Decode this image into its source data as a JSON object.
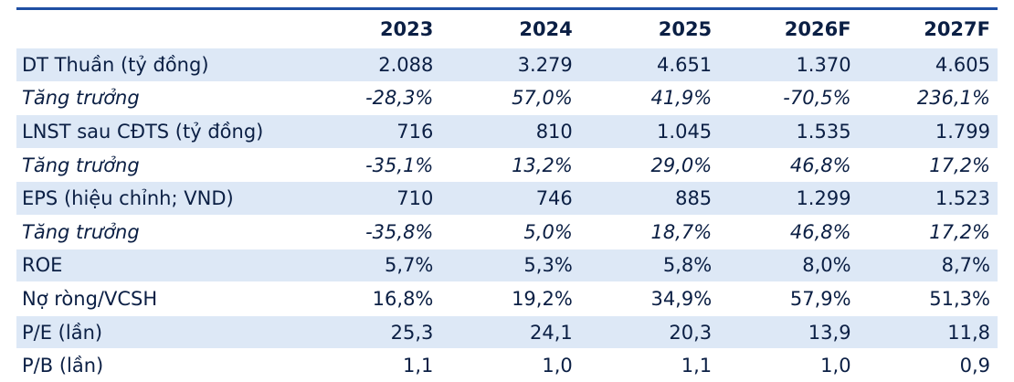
{
  "table": {
    "headers": [
      "",
      "2023",
      "2024",
      "2025",
      "2026F",
      "2027F"
    ],
    "rows": [
      {
        "label": "DT Thuần (tỷ đồng)",
        "values": [
          "2.088",
          "3.279",
          "4.651",
          "1.370",
          "4.605"
        ],
        "style": "shade"
      },
      {
        "label": "Tăng trưởng",
        "values": [
          "-28,3%",
          "57,0%",
          "41,9%",
          "-70,5%",
          "236,1%"
        ],
        "style": "growth"
      },
      {
        "label": "LNST sau CĐTS (tỷ đồng)",
        "values": [
          "716",
          "810",
          "1.045",
          "1.535",
          "1.799"
        ],
        "style": "shade"
      },
      {
        "label": "Tăng trưởng",
        "values": [
          "-35,1%",
          "13,2%",
          "29,0%",
          "46,8%",
          "17,2%"
        ],
        "style": "growth"
      },
      {
        "label": "EPS (hiệu chỉnh; VND)",
        "values": [
          "710",
          "746",
          "885",
          "1.299",
          "1.523"
        ],
        "style": "shade"
      },
      {
        "label": "Tăng trưởng",
        "values": [
          "-35,8%",
          "5,0%",
          "18,7%",
          "46,8%",
          "17,2%"
        ],
        "style": "growth"
      },
      {
        "label": "ROE",
        "values": [
          "5,7%",
          "5,3%",
          "5,8%",
          "8,0%",
          "8,7%"
        ],
        "style": "shade"
      },
      {
        "label": "Nợ ròng/VCSH",
        "values": [
          "16,8%",
          "19,2%",
          "34,9%",
          "57,9%",
          "51,3%"
        ],
        "style": "plain"
      },
      {
        "label": "P/E (lần)",
        "values": [
          "25,3",
          "24,1",
          "20,3",
          "13,9",
          "11,8"
        ],
        "style": "shade"
      },
      {
        "label": "P/B (lần)",
        "values": [
          "1,1",
          "1,0",
          "1,1",
          "1,0",
          "0,9"
        ],
        "style": "plain"
      }
    ]
  },
  "colors": {
    "header_rule": "#1f4fa3",
    "row_shade": "#dde8f6",
    "text": "#0b1f44"
  }
}
